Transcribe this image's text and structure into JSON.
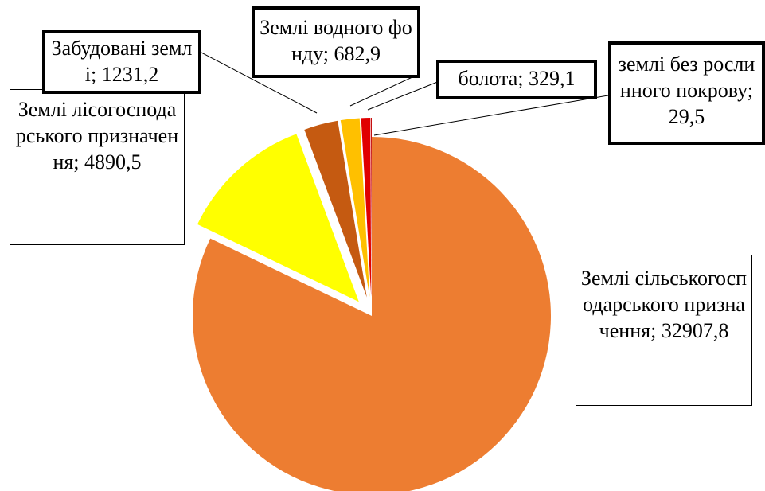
{
  "chart_data": {
    "type": "pie",
    "categories": [
      "Землі сільськогосподарського призначення;",
      "Землі лісогосподарського призначення;",
      "Забудовані землі;",
      "Землі водного фонду;",
      "болота;",
      "землі без рослинного покрову;"
    ],
    "values": [
      32907.8,
      4890.5,
      1231.2,
      682.9,
      329.1,
      29.5
    ],
    "value_labels": [
      "32907,8",
      "4890,5",
      "1231,2",
      "682,9",
      "329,1",
      "29,5"
    ],
    "colors": [
      "#ED7D31",
      "#FFFF00",
      "#C55A11",
      "#FFC000",
      "#E00000",
      "#C00000"
    ]
  }
}
